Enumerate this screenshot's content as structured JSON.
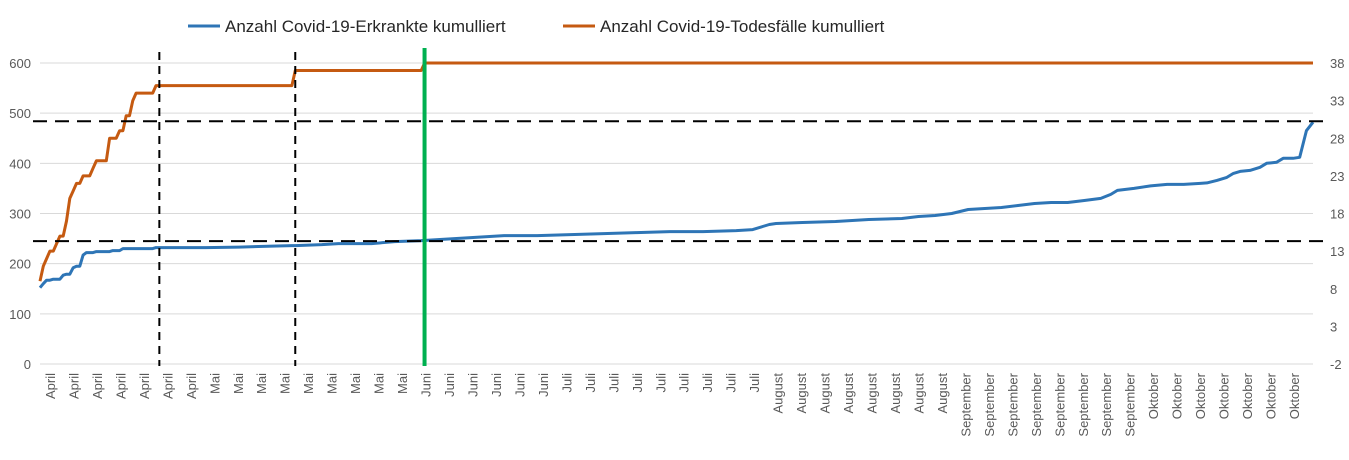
{
  "chart_data": {
    "type": "line",
    "legend_position": "top",
    "grid": "horizontal",
    "colors": {
      "cases": "#2E75B6",
      "deaths": "#C55A11",
      "grid": "#D9D9D9",
      "marker_black": "#000000",
      "marker_green": "#00B050"
    },
    "y_left": {
      "min": 0,
      "max": 600,
      "ticks": [
        "0",
        "100",
        "200",
        "300",
        "400",
        "500",
        "600"
      ]
    },
    "y_right": {
      "min": -2,
      "max": 38,
      "ticks": [
        "-2",
        "3",
        "8",
        "13",
        "18",
        "23",
        "28",
        "33",
        "38"
      ]
    },
    "x_tick_labels": [
      "April",
      "April",
      "April",
      "April",
      "April",
      "April",
      "April",
      "Mai",
      "Mai",
      "Mai",
      "Mai",
      "Mai",
      "Mai",
      "Mai",
      "Mai",
      "Mai",
      "Juni",
      "Juni",
      "Juni",
      "Juni",
      "Juni",
      "Juni",
      "Juli",
      "Juli",
      "Juli",
      "Juli",
      "Juli",
      "Juli",
      "Juli",
      "Juli",
      "Juli",
      "August",
      "August",
      "August",
      "August",
      "August",
      "August",
      "August",
      "August",
      "September",
      "September",
      "September",
      "September",
      "September",
      "September",
      "September",
      "September",
      "Oktober",
      "Oktober",
      "Oktober",
      "Oktober",
      "Oktober",
      "Oktober",
      "Oktober"
    ],
    "series": [
      {
        "name": "Anzahl Covid-19-Erkrankte kumulliert",
        "axis": "left",
        "points": [
          [
            0,
            152
          ],
          [
            1,
            160
          ],
          [
            2,
            167
          ],
          [
            3,
            167
          ],
          [
            4,
            169
          ],
          [
            5,
            169
          ],
          [
            6,
            169
          ],
          [
            7,
            177
          ],
          [
            8,
            179
          ],
          [
            9,
            179
          ],
          [
            10,
            192
          ],
          [
            11,
            195
          ],
          [
            12,
            195
          ],
          [
            13,
            217
          ],
          [
            14,
            222
          ],
          [
            15,
            222
          ],
          [
            16,
            222
          ],
          [
            17,
            224
          ],
          [
            18,
            224
          ],
          [
            19,
            224
          ],
          [
            20,
            224
          ],
          [
            21,
            224
          ],
          [
            22,
            226
          ],
          [
            23,
            226
          ],
          [
            24,
            226
          ],
          [
            25,
            230
          ],
          [
            26,
            230
          ],
          [
            27,
            230
          ],
          [
            28,
            230
          ],
          [
            29,
            230
          ],
          [
            30,
            230
          ],
          [
            31,
            230
          ],
          [
            32,
            230
          ],
          [
            33,
            230
          ],
          [
            34,
            230
          ],
          [
            35,
            232
          ],
          [
            36,
            232
          ],
          [
            40,
            232
          ],
          [
            50,
            232
          ],
          [
            60,
            233
          ],
          [
            70,
            235
          ],
          [
            76,
            236
          ],
          [
            77,
            236
          ],
          [
            85,
            238
          ],
          [
            90,
            240
          ],
          [
            100,
            240
          ],
          [
            107,
            244
          ],
          [
            115,
            246
          ],
          [
            120,
            248
          ],
          [
            130,
            252
          ],
          [
            140,
            256
          ],
          [
            150,
            256
          ],
          [
            160,
            258
          ],
          [
            170,
            260
          ],
          [
            180,
            262
          ],
          [
            190,
            264
          ],
          [
            200,
            264
          ],
          [
            210,
            266
          ],
          [
            215,
            268
          ],
          [
            218,
            274
          ],
          [
            220,
            278
          ],
          [
            222,
            280
          ],
          [
            230,
            282
          ],
          [
            240,
            284
          ],
          [
            245,
            286
          ],
          [
            250,
            288
          ],
          [
            260,
            290
          ],
          [
            265,
            294
          ],
          [
            270,
            296
          ],
          [
            275,
            300
          ],
          [
            280,
            308
          ],
          [
            285,
            310
          ],
          [
            290,
            312
          ],
          [
            295,
            316
          ],
          [
            300,
            320
          ],
          [
            305,
            322
          ],
          [
            310,
            322
          ],
          [
            315,
            326
          ],
          [
            320,
            330
          ],
          [
            323,
            338
          ],
          [
            325,
            346
          ],
          [
            330,
            350
          ],
          [
            335,
            355
          ],
          [
            340,
            358
          ],
          [
            345,
            358
          ],
          [
            350,
            360
          ],
          [
            352,
            361
          ],
          [
            355,
            366
          ],
          [
            358,
            372
          ],
          [
            360,
            380
          ],
          [
            362,
            384
          ],
          [
            365,
            386
          ],
          [
            368,
            392
          ],
          [
            370,
            400
          ],
          [
            373,
            402
          ],
          [
            375,
            410
          ],
          [
            378,
            410
          ],
          [
            380,
            412
          ],
          [
            382,
            465
          ],
          [
            384,
            482
          ]
        ]
      },
      {
        "name": "Anzahl Covid-19-Todesfälle kumulliert",
        "axis": "right",
        "points": [
          [
            0,
            9
          ],
          [
            1,
            11
          ],
          [
            2,
            12
          ],
          [
            3,
            13
          ],
          [
            4,
            13
          ],
          [
            5,
            14
          ],
          [
            6,
            15
          ],
          [
            7,
            15
          ],
          [
            8,
            17
          ],
          [
            9,
            20
          ],
          [
            10,
            21
          ],
          [
            11,
            22
          ],
          [
            12,
            22
          ],
          [
            13,
            23
          ],
          [
            14,
            23
          ],
          [
            15,
            23
          ],
          [
            16,
            24
          ],
          [
            17,
            25
          ],
          [
            18,
            25
          ],
          [
            19,
            25
          ],
          [
            20,
            25
          ],
          [
            21,
            28
          ],
          [
            22,
            28
          ],
          [
            23,
            28
          ],
          [
            24,
            29
          ],
          [
            25,
            29
          ],
          [
            26,
            31
          ],
          [
            27,
            31
          ],
          [
            28,
            33
          ],
          [
            29,
            34
          ],
          [
            34,
            34
          ],
          [
            35,
            35
          ],
          [
            36,
            35
          ],
          [
            40,
            35
          ],
          [
            50,
            35
          ],
          [
            60,
            35
          ],
          [
            70,
            35
          ],
          [
            76,
            35
          ],
          [
            77,
            37
          ],
          [
            80,
            37
          ],
          [
            90,
            37
          ],
          [
            100,
            37
          ],
          [
            115,
            37
          ],
          [
            116,
            38
          ],
          [
            384,
            38
          ]
        ]
      }
    ],
    "reference_lines": {
      "horizontal_left_values": [
        484,
        245
      ],
      "vertical_dashed_x": [
        36,
        77
      ],
      "vertical_green_x": 116
    }
  }
}
